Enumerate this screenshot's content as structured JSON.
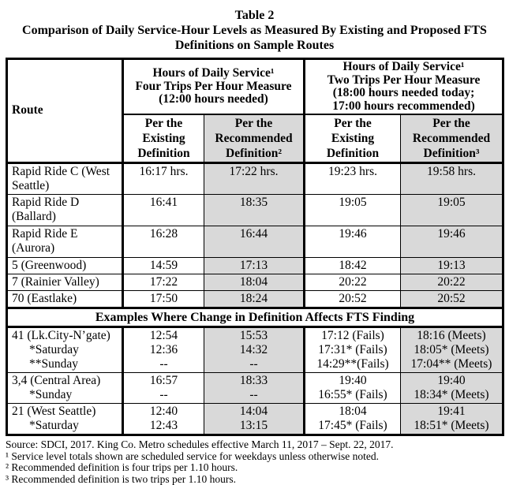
{
  "title": {
    "line1": "Table 2",
    "line2": "Comparison of Daily Service-Hour Levels as Measured By Existing and Proposed FTS",
    "line3": "Definitions on Sample Routes"
  },
  "table": {
    "route_header": "Route",
    "group1": [
      "Hours of Daily Service¹",
      "Four Trips Per Hour Measure",
      "(12:00 hours needed)"
    ],
    "group2": [
      "Hours of Daily Service¹",
      "Two Trips Per Hour Measure",
      "(18:00 hours needed today;",
      "17:00 hours recommended)"
    ],
    "subheaders": {
      "existing4": [
        "Per the",
        "Existing",
        "Definition"
      ],
      "recommended4": [
        "Per the",
        "Recommended",
        "Definition²"
      ],
      "existing2": [
        "Per the",
        "Existing",
        "Definition"
      ],
      "recommended2": [
        "Per the",
        "Recommended",
        "Definition³"
      ]
    },
    "rows": [
      {
        "route": [
          "Rapid Ride C (West Seattle)"
        ],
        "c1": [
          "16:17 hrs."
        ],
        "c2": [
          "17:22 hrs."
        ],
        "c3": [
          "19:23 hrs."
        ],
        "c4": [
          "19:58 hrs."
        ]
      },
      {
        "route": [
          "Rapid Ride D (Ballard)"
        ],
        "c1": [
          "16:41"
        ],
        "c2": [
          "18:35"
        ],
        "c3": [
          "19:05"
        ],
        "c4": [
          "19:05"
        ]
      },
      {
        "route": [
          "Rapid Ride E (Aurora)"
        ],
        "c1": [
          "16:28"
        ],
        "c2": [
          "16:44"
        ],
        "c3": [
          "19:46"
        ],
        "c4": [
          "19:46"
        ]
      },
      {
        "route": [
          "5 (Greenwood)"
        ],
        "c1": [
          "14:59"
        ],
        "c2": [
          "17:13"
        ],
        "c3": [
          "18:42"
        ],
        "c4": [
          "19:13"
        ]
      },
      {
        "route": [
          "7 (Rainier Valley)"
        ],
        "c1": [
          "17:22"
        ],
        "c2": [
          "18:04"
        ],
        "c3": [
          "20:22"
        ],
        "c4": [
          "20:22"
        ]
      },
      {
        "route": [
          "70 (Eastlake)"
        ],
        "c1": [
          "17:50"
        ],
        "c2": [
          "18:24"
        ],
        "c3": [
          "20:52"
        ],
        "c4": [
          "20:52"
        ]
      }
    ],
    "examples_banner": "Examples Where Change in Definition Affects FTS Finding",
    "example_rows": [
      {
        "route": [
          "41 (Lk.City-N’gate)",
          "*Saturday",
          "**Sunday"
        ],
        "c1": [
          "12:54",
          "12:36",
          "--"
        ],
        "c2": [
          "15:53",
          "14:32",
          "--"
        ],
        "c3": [
          "17:12 (Fails)",
          "17:31* (Fails)",
          "14:29**(Fails)"
        ],
        "c4": [
          "18:16 (Meets)",
          "18:05* (Meets)",
          "17:04** (Meets)"
        ]
      },
      {
        "route": [
          "3,4 (Central Area)",
          "*Sunday"
        ],
        "c1": [
          "16:57",
          "--"
        ],
        "c2": [
          "18:33",
          "--"
        ],
        "c3": [
          "19:40",
          "16:55* (Fails)"
        ],
        "c4": [
          "19:40",
          "18:34* (Meets)"
        ]
      },
      {
        "route": [
          "21 (West Seattle)",
          "*Saturday"
        ],
        "c1": [
          "12:40",
          "12:43"
        ],
        "c2": [
          "14:04",
          "13:15"
        ],
        "c3": [
          "18:04",
          "17:45* (Fails)"
        ],
        "c4": [
          "19:41",
          "18:51* (Meets)"
        ]
      }
    ]
  },
  "footnotes": {
    "source": "Source: SDCI, 2017. King Co. Metro schedules effective March 11, 2017 – Sept. 22, 2017.",
    "fn1": "¹ Service level totals shown are scheduled service for weekdays unless otherwise noted.",
    "fn2": "² Recommended definition is four trips per 1.10 hours.",
    "fn3": "³ Recommended definition is two trips per 1.10 hours."
  }
}
